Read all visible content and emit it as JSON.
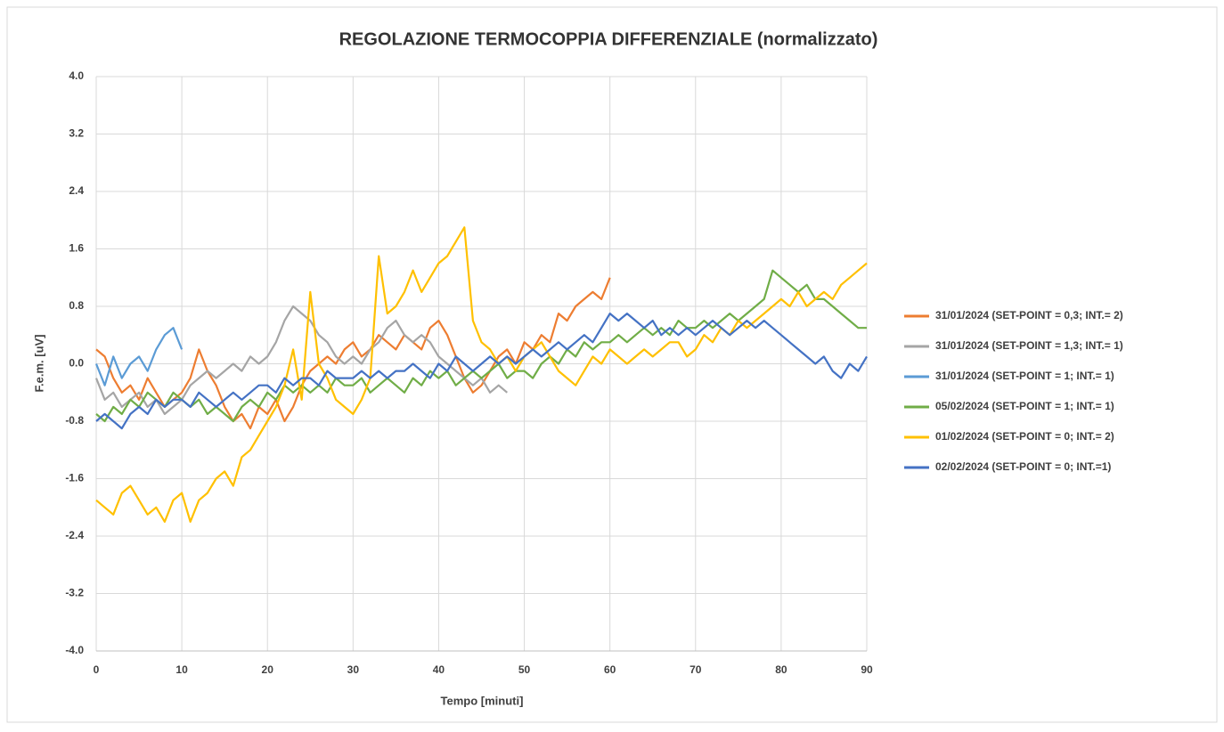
{
  "chart_data": {
    "type": "line",
    "title": "REGOLAZIONE TERMOCOPPIA DIFFERENZIALE (normalizzato)",
    "x_label": "Tempo [minuti]",
    "y_label": "F.e.m. [uV]",
    "x": [
      0,
      1,
      2,
      3,
      4,
      5,
      6,
      7,
      8,
      9,
      10,
      11,
      12,
      13,
      14,
      15,
      16,
      17,
      18,
      19,
      20,
      21,
      22,
      23,
      24,
      25,
      26,
      27,
      28,
      29,
      30,
      31,
      32,
      33,
      34,
      35,
      36,
      37,
      38,
      39,
      40,
      41,
      42,
      43,
      44,
      45,
      46,
      47,
      48,
      49,
      50,
      51,
      52,
      53,
      54,
      55,
      56,
      57,
      58,
      59,
      60,
      61,
      62,
      63,
      64,
      65,
      66,
      67,
      68,
      69,
      70,
      71,
      72,
      73,
      74,
      75,
      76,
      77,
      78,
      79,
      80,
      81,
      82,
      83,
      84,
      85,
      86,
      87,
      88,
      89,
      90
    ],
    "xlim": [
      0,
      90
    ],
    "xticks": [
      0,
      10,
      20,
      30,
      40,
      50,
      60,
      70,
      80,
      90
    ],
    "ylim": [
      -4,
      4
    ],
    "yticks": [
      {
        "value": 4,
        "label": "4.0"
      },
      {
        "value": 3.2,
        "label": "3.2"
      },
      {
        "value": 2.4,
        "label": "2.4"
      },
      {
        "value": 1.6,
        "label": "1.6"
      },
      {
        "value": 0.8,
        "label": "0.8"
      },
      {
        "value": 0,
        "label": "0.0"
      },
      {
        "value": -0.8,
        "label": "-0.8"
      },
      {
        "value": -1.6,
        "label": "-1.6"
      },
      {
        "value": -2.4,
        "label": "-2.4"
      },
      {
        "value": -3.2,
        "label": "-3.2"
      },
      {
        "value": -4,
        "label": "-4.0"
      }
    ],
    "grid": true,
    "legend": "right",
    "series": [
      {
        "name": "31/01/2024 (SET-POINT = 0,3; INT.= 2)",
        "color": "#ed7d31",
        "values": [
          0.2,
          0.1,
          -0.2,
          -0.4,
          -0.3,
          -0.5,
          -0.2,
          -0.4,
          -0.6,
          -0.5,
          -0.4,
          -0.2,
          0.2,
          -0.1,
          -0.3,
          -0.6,
          -0.8,
          -0.7,
          -0.9,
          -0.6,
          -0.7,
          -0.5,
          -0.8,
          -0.6,
          -0.3,
          -0.1,
          0.0,
          0.1,
          0.0,
          0.2,
          0.3,
          0.1,
          0.2,
          0.4,
          0.3,
          0.2,
          0.4,
          0.3,
          0.2,
          0.5,
          0.6,
          0.4,
          0.1,
          -0.2,
          -0.4,
          -0.3,
          -0.1,
          0.1,
          0.2,
          0.0,
          0.3,
          0.2,
          0.4,
          0.3,
          0.7,
          0.6,
          0.8,
          0.9,
          1.0,
          0.9,
          1.2,
          null,
          null,
          null,
          null,
          null,
          null,
          null,
          null,
          null,
          null,
          null,
          null,
          null,
          null,
          null,
          null,
          null,
          null,
          null,
          null,
          null,
          null,
          null,
          null,
          null,
          null,
          null,
          null,
          null,
          null
        ]
      },
      {
        "name": "31/01/2024 (SET-POINT = 1,3; INT.= 1)",
        "color": "#a5a5a5",
        "values": [
          -0.2,
          -0.5,
          -0.4,
          -0.6,
          -0.5,
          -0.4,
          -0.6,
          -0.5,
          -0.7,
          -0.6,
          -0.5,
          -0.3,
          -0.2,
          -0.1,
          -0.2,
          -0.1,
          0.0,
          -0.1,
          0.1,
          0.0,
          0.1,
          0.3,
          0.6,
          0.8,
          0.7,
          0.6,
          0.4,
          0.3,
          0.1,
          0.0,
          0.1,
          0.0,
          0.2,
          0.3,
          0.5,
          0.6,
          0.4,
          0.3,
          0.4,
          0.3,
          0.1,
          0.0,
          -0.1,
          -0.2,
          -0.3,
          -0.2,
          -0.4,
          -0.3,
          -0.4,
          null,
          null,
          null,
          null,
          null,
          null,
          null,
          null,
          null,
          null,
          null,
          null,
          null,
          null,
          null,
          null,
          null,
          null,
          null,
          null,
          null,
          null,
          null,
          null,
          null,
          null,
          null,
          null,
          null,
          null,
          null,
          null,
          null,
          null,
          null,
          null,
          null,
          null,
          null,
          null,
          null,
          null
        ]
      },
      {
        "name": "31/01/2024 (SET-POINT = 1; INT.= 1)",
        "color": "#5b9bd5",
        "values": [
          0.0,
          -0.3,
          0.1,
          -0.2,
          0.0,
          0.1,
          -0.1,
          0.2,
          0.4,
          0.5,
          0.2,
          null,
          null,
          null,
          null,
          null,
          null,
          null,
          null,
          null,
          null,
          null,
          null,
          null,
          null,
          null,
          null,
          null,
          null,
          null,
          null,
          null,
          null,
          null,
          null,
          null,
          null,
          null,
          null,
          null,
          null,
          null,
          null,
          null,
          null,
          null,
          null,
          null,
          null,
          null,
          null,
          null,
          null,
          null,
          null,
          null,
          null,
          null,
          null,
          null,
          null,
          null,
          null,
          null,
          null,
          null,
          null,
          null,
          null,
          null,
          null,
          null,
          null,
          null,
          null,
          null,
          null,
          null,
          null,
          null,
          null,
          null,
          null,
          null,
          null,
          null,
          null,
          null,
          null,
          null,
          null
        ]
      },
      {
        "name": "05/02/2024 (SET-POINT = 1; INT.= 1)",
        "color": "#70ad47",
        "values": [
          -0.7,
          -0.8,
          -0.6,
          -0.7,
          -0.5,
          -0.6,
          -0.4,
          -0.5,
          -0.6,
          -0.4,
          -0.5,
          -0.6,
          -0.5,
          -0.7,
          -0.6,
          -0.7,
          -0.8,
          -0.6,
          -0.5,
          -0.6,
          -0.4,
          -0.5,
          -0.3,
          -0.4,
          -0.3,
          -0.4,
          -0.3,
          -0.4,
          -0.2,
          -0.3,
          -0.3,
          -0.2,
          -0.4,
          -0.3,
          -0.2,
          -0.3,
          -0.4,
          -0.2,
          -0.3,
          -0.1,
          -0.2,
          -0.1,
          -0.3,
          -0.2,
          -0.1,
          -0.2,
          -0.1,
          0.0,
          -0.2,
          -0.1,
          -0.1,
          -0.2,
          0.0,
          0.1,
          0.0,
          0.2,
          0.1,
          0.3,
          0.2,
          0.3,
          0.3,
          0.4,
          0.3,
          0.4,
          0.5,
          0.4,
          0.5,
          0.4,
          0.6,
          0.5,
          0.5,
          0.6,
          0.5,
          0.6,
          0.7,
          0.6,
          0.7,
          0.8,
          0.9,
          1.3,
          1.2,
          1.1,
          1.0,
          1.1,
          0.9,
          0.9,
          0.8,
          0.7,
          0.6,
          0.5,
          0.5
        ]
      },
      {
        "name": "01/02/2024 (SET-POINT = 0; INT.= 2)",
        "color": "#ffc000",
        "values": [
          -1.9,
          -2.0,
          -2.1,
          -1.8,
          -1.7,
          -1.9,
          -2.1,
          -2.0,
          -2.2,
          -1.9,
          -1.8,
          -2.2,
          -1.9,
          -1.8,
          -1.6,
          -1.5,
          -1.7,
          -1.3,
          -1.2,
          -1.0,
          -0.8,
          -0.6,
          -0.3,
          0.2,
          -0.5,
          1.0,
          0.0,
          -0.2,
          -0.5,
          -0.6,
          -0.7,
          -0.5,
          -0.2,
          1.5,
          0.7,
          0.8,
          1.0,
          1.3,
          1.0,
          1.2,
          1.4,
          1.5,
          1.7,
          1.9,
          0.6,
          0.3,
          0.2,
          0.0,
          0.1,
          -0.1,
          0.1,
          0.2,
          0.3,
          0.1,
          -0.1,
          -0.2,
          -0.3,
          -0.1,
          0.1,
          0.0,
          0.2,
          0.1,
          0.0,
          0.1,
          0.2,
          0.1,
          0.2,
          0.3,
          0.3,
          0.1,
          0.2,
          0.4,
          0.3,
          0.5,
          0.4,
          0.6,
          0.5,
          0.6,
          0.7,
          0.8,
          0.9,
          0.8,
          1.0,
          0.8,
          0.9,
          1.0,
          0.9,
          1.1,
          1.2,
          1.3,
          1.4
        ]
      },
      {
        "name": "02/02/2024 (SET-POINT = 0; INT.=1)",
        "color": "#4472c4",
        "values": [
          -0.8,
          -0.7,
          -0.8,
          -0.9,
          -0.7,
          -0.6,
          -0.7,
          -0.5,
          -0.6,
          -0.5,
          -0.5,
          -0.6,
          -0.4,
          -0.5,
          -0.6,
          -0.5,
          -0.4,
          -0.5,
          -0.4,
          -0.3,
          -0.3,
          -0.4,
          -0.2,
          -0.3,
          -0.2,
          -0.2,
          -0.3,
          -0.1,
          -0.2,
          -0.2,
          -0.2,
          -0.1,
          -0.2,
          -0.1,
          -0.2,
          -0.1,
          -0.1,
          0.0,
          -0.1,
          -0.2,
          0.0,
          -0.1,
          0.1,
          0.0,
          -0.1,
          0.0,
          0.1,
          0.0,
          0.1,
          0.0,
          0.1,
          0.2,
          0.1,
          0.2,
          0.3,
          0.2,
          0.3,
          0.4,
          0.3,
          0.5,
          0.7,
          0.6,
          0.7,
          0.6,
          0.5,
          0.6,
          0.4,
          0.5,
          0.4,
          0.5,
          0.4,
          0.5,
          0.6,
          0.5,
          0.4,
          0.5,
          0.6,
          0.5,
          0.6,
          0.5,
          0.4,
          0.3,
          0.2,
          0.1,
          0.0,
          0.1,
          -0.1,
          -0.2,
          0.0,
          -0.1,
          0.1
        ]
      }
    ]
  }
}
